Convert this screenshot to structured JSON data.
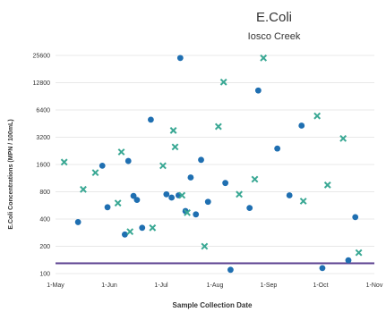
{
  "chart_data": {
    "type": "scatter",
    "title": "E.Coli",
    "subtitle": "Iosco Creek",
    "xlabel": "Sample Collection Date",
    "ylabel": "E.Coli Concentrations (MPN / 100mL)",
    "x_ticks": [
      "1-May",
      "1-Jun",
      "1-Jul",
      "1-Aug",
      "1-Sep",
      "1-Oct",
      "1-Nov"
    ],
    "y_ticks": [
      "100",
      "200",
      "400",
      "800",
      "1600",
      "3200",
      "6400",
      "12800",
      "25600"
    ],
    "y_scale": "log2",
    "ylim": [
      100,
      25600
    ],
    "grid": true,
    "reference_line": {
      "value": 130,
      "color": "#5b3f8f"
    },
    "colors": {
      "circle": "#1f6fb1",
      "cross": "#3aa894",
      "grid": "#e8e8e8",
      "text": "#333333"
    },
    "series": [
      {
        "marker": "circle",
        "points": [
          {
            "x": "2024-05-14",
            "y": 370
          },
          {
            "x": "2024-05-28",
            "y": 1550
          },
          {
            "x": "2024-05-31",
            "y": 540
          },
          {
            "x": "2024-06-10",
            "y": 270
          },
          {
            "x": "2024-06-12",
            "y": 1750
          },
          {
            "x": "2024-06-15",
            "y": 720
          },
          {
            "x": "2024-06-17",
            "y": 650
          },
          {
            "x": "2024-06-20",
            "y": 320
          },
          {
            "x": "2024-06-25",
            "y": 5000
          },
          {
            "x": "2024-07-04",
            "y": 750
          },
          {
            "x": "2024-07-07",
            "y": 690
          },
          {
            "x": "2024-07-11",
            "y": 730
          },
          {
            "x": "2024-07-12",
            "y": 24000
          },
          {
            "x": "2024-07-15",
            "y": 490
          },
          {
            "x": "2024-07-18",
            "y": 1150
          },
          {
            "x": "2024-07-21",
            "y": 450
          },
          {
            "x": "2024-07-24",
            "y": 1800
          },
          {
            "x": "2024-07-28",
            "y": 620
          },
          {
            "x": "2024-08-07",
            "y": 1000
          },
          {
            "x": "2024-08-10",
            "y": 110
          },
          {
            "x": "2024-08-21",
            "y": 530
          },
          {
            "x": "2024-08-26",
            "y": 10500
          },
          {
            "x": "2024-09-06",
            "y": 2400
          },
          {
            "x": "2024-09-13",
            "y": 730
          },
          {
            "x": "2024-09-20",
            "y": 4300
          },
          {
            "x": "2024-10-02",
            "y": 115
          },
          {
            "x": "2024-10-17",
            "y": 140
          },
          {
            "x": "2024-10-21",
            "y": 420
          }
        ]
      },
      {
        "marker": "cross",
        "points": [
          {
            "x": "2024-05-06",
            "y": 1700
          },
          {
            "x": "2024-05-17",
            "y": 850
          },
          {
            "x": "2024-05-24",
            "y": 1300
          },
          {
            "x": "2024-06-06",
            "y": 600
          },
          {
            "x": "2024-06-08",
            "y": 2200
          },
          {
            "x": "2024-06-13",
            "y": 290
          },
          {
            "x": "2024-06-26",
            "y": 320
          },
          {
            "x": "2024-07-02",
            "y": 1550
          },
          {
            "x": "2024-07-08",
            "y": 3800
          },
          {
            "x": "2024-07-09",
            "y": 2500
          },
          {
            "x": "2024-07-13",
            "y": 730
          },
          {
            "x": "2024-07-16",
            "y": 470
          },
          {
            "x": "2024-07-26",
            "y": 200
          },
          {
            "x": "2024-08-03",
            "y": 4200
          },
          {
            "x": "2024-08-06",
            "y": 13000
          },
          {
            "x": "2024-08-15",
            "y": 750
          },
          {
            "x": "2024-08-24",
            "y": 1100
          },
          {
            "x": "2024-08-29",
            "y": 24000
          },
          {
            "x": "2024-09-21",
            "y": 630
          },
          {
            "x": "2024-09-29",
            "y": 5500
          },
          {
            "x": "2024-10-05",
            "y": 950
          },
          {
            "x": "2024-10-14",
            "y": 3100
          },
          {
            "x": "2024-10-23",
            "y": 170
          }
        ]
      }
    ]
  }
}
